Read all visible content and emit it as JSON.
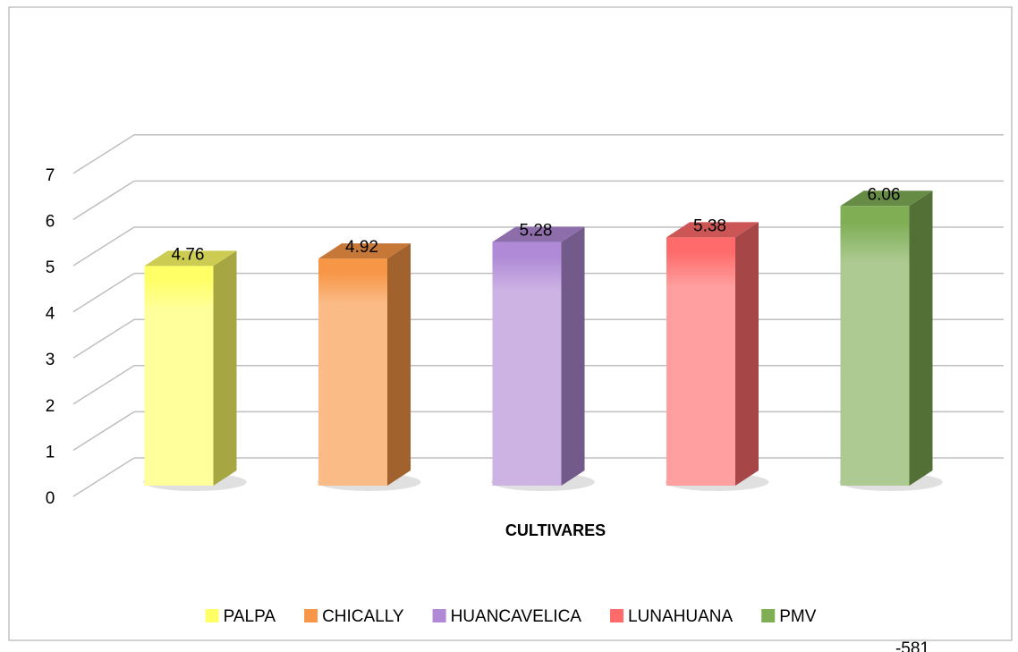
{
  "chart_data": {
    "type": "bar3d",
    "xlabel": "CULTIVARES",
    "series": [
      {
        "name": "PALPA",
        "color": "#ffff66",
        "values": [
          4.76
        ]
      },
      {
        "name": "CHICALLY",
        "color": "#f79646",
        "values": [
          4.92
        ]
      },
      {
        "name": "HUANCAVELICA",
        "color": "#b08ad6",
        "values": [
          5.28
        ]
      },
      {
        "name": "LUNAHUANA",
        "color": "#ff6b6b",
        "values": [
          5.38
        ]
      },
      {
        "name": "PMV",
        "color": "#7fae55",
        "values": [
          6.06
        ]
      }
    ],
    "ylim": [
      0,
      7
    ],
    "yticks": [
      0,
      1,
      2,
      3,
      4,
      5,
      6,
      7
    ],
    "grid": true,
    "legend": "bottom"
  },
  "page_number": "-581"
}
